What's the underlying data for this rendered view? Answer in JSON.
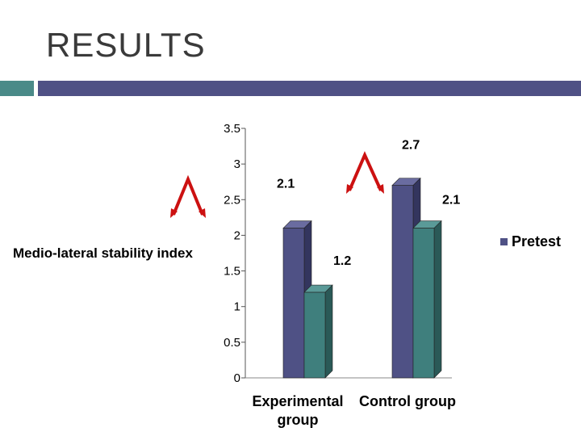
{
  "slide": {
    "title": "RESULTS"
  },
  "chart_data": {
    "type": "bar",
    "title": "",
    "ylabel": "Medio-lateral stability index",
    "xlabel": "",
    "ylim": [
      0,
      3.5
    ],
    "yticks": [
      "0",
      "0.5",
      "1",
      "1.5",
      "2",
      "2.5",
      "3",
      "3.5"
    ],
    "categories": [
      "Experimental group",
      "Control group"
    ],
    "series": [
      {
        "name": "Pretest",
        "values": [
          2.1,
          2.7
        ],
        "color": "#4f5185"
      },
      {
        "values": [
          1.2,
          2.1
        ],
        "color": "#3f7f7d"
      }
    ],
    "data_labels": [
      "2.1",
      "1.2",
      "2.7",
      "2.1"
    ],
    "legend": {
      "position": "right",
      "entries": [
        "Pretest"
      ]
    },
    "grid": false,
    "three_d": true
  },
  "colors": {
    "accent": "#4a8a88",
    "brand": "#4f5185",
    "arrow": "#cc1111"
  }
}
